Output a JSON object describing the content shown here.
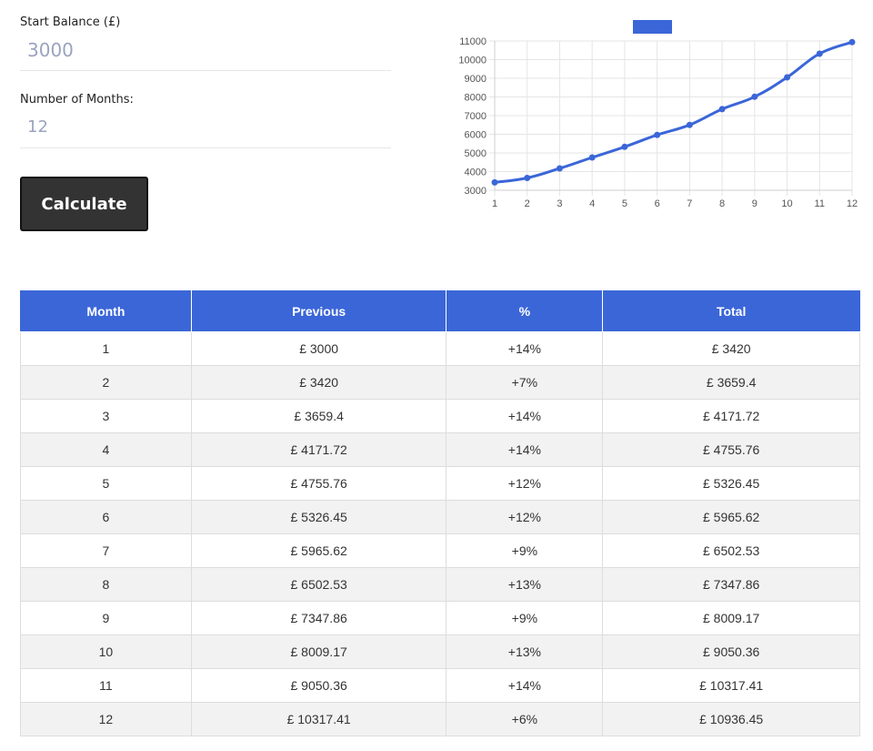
{
  "form": {
    "start_label": "Start Balance (£)",
    "start_value": "3000",
    "months_label": "Number of Months:",
    "months_value": "12",
    "calculate_label": "Calculate"
  },
  "colors": {
    "accent": "#3b66d8",
    "button": "#333333"
  },
  "chart_data": {
    "type": "line",
    "x": [
      1,
      2,
      3,
      4,
      5,
      6,
      7,
      8,
      9,
      10,
      11,
      12
    ],
    "series": [
      {
        "values": [
          3420,
          3659.4,
          4171.72,
          4755.76,
          5326.45,
          5965.62,
          6502.53,
          7347.86,
          8009.17,
          9050.36,
          10317.41,
          10936.45
        ]
      }
    ],
    "ylim": [
      3000,
      11000
    ],
    "yticks": [
      3000,
      4000,
      5000,
      6000,
      7000,
      8000,
      9000,
      10000,
      11000
    ],
    "grid": true,
    "legend": "top-center",
    "color": "#3b66d8"
  },
  "table": {
    "headers": [
      "Month",
      "Previous",
      "%",
      "Total"
    ],
    "rows": [
      [
        "1",
        "£ 3000",
        "+14%",
        "£ 3420"
      ],
      [
        "2",
        "£ 3420",
        "+7%",
        "£ 3659.4"
      ],
      [
        "3",
        "£ 3659.4",
        "+14%",
        "£ 4171.72"
      ],
      [
        "4",
        "£ 4171.72",
        "+14%",
        "£ 4755.76"
      ],
      [
        "5",
        "£ 4755.76",
        "+12%",
        "£ 5326.45"
      ],
      [
        "6",
        "£ 5326.45",
        "+12%",
        "£ 5965.62"
      ],
      [
        "7",
        "£ 5965.62",
        "+9%",
        "£ 6502.53"
      ],
      [
        "8",
        "£ 6502.53",
        "+13%",
        "£ 7347.86"
      ],
      [
        "9",
        "£ 7347.86",
        "+9%",
        "£ 8009.17"
      ],
      [
        "10",
        "£ 8009.17",
        "+13%",
        "£ 9050.36"
      ],
      [
        "11",
        "£ 9050.36",
        "+14%",
        "£ 10317.41"
      ],
      [
        "12",
        "£ 10317.41",
        "+6%",
        "£ 10936.45"
      ]
    ]
  }
}
